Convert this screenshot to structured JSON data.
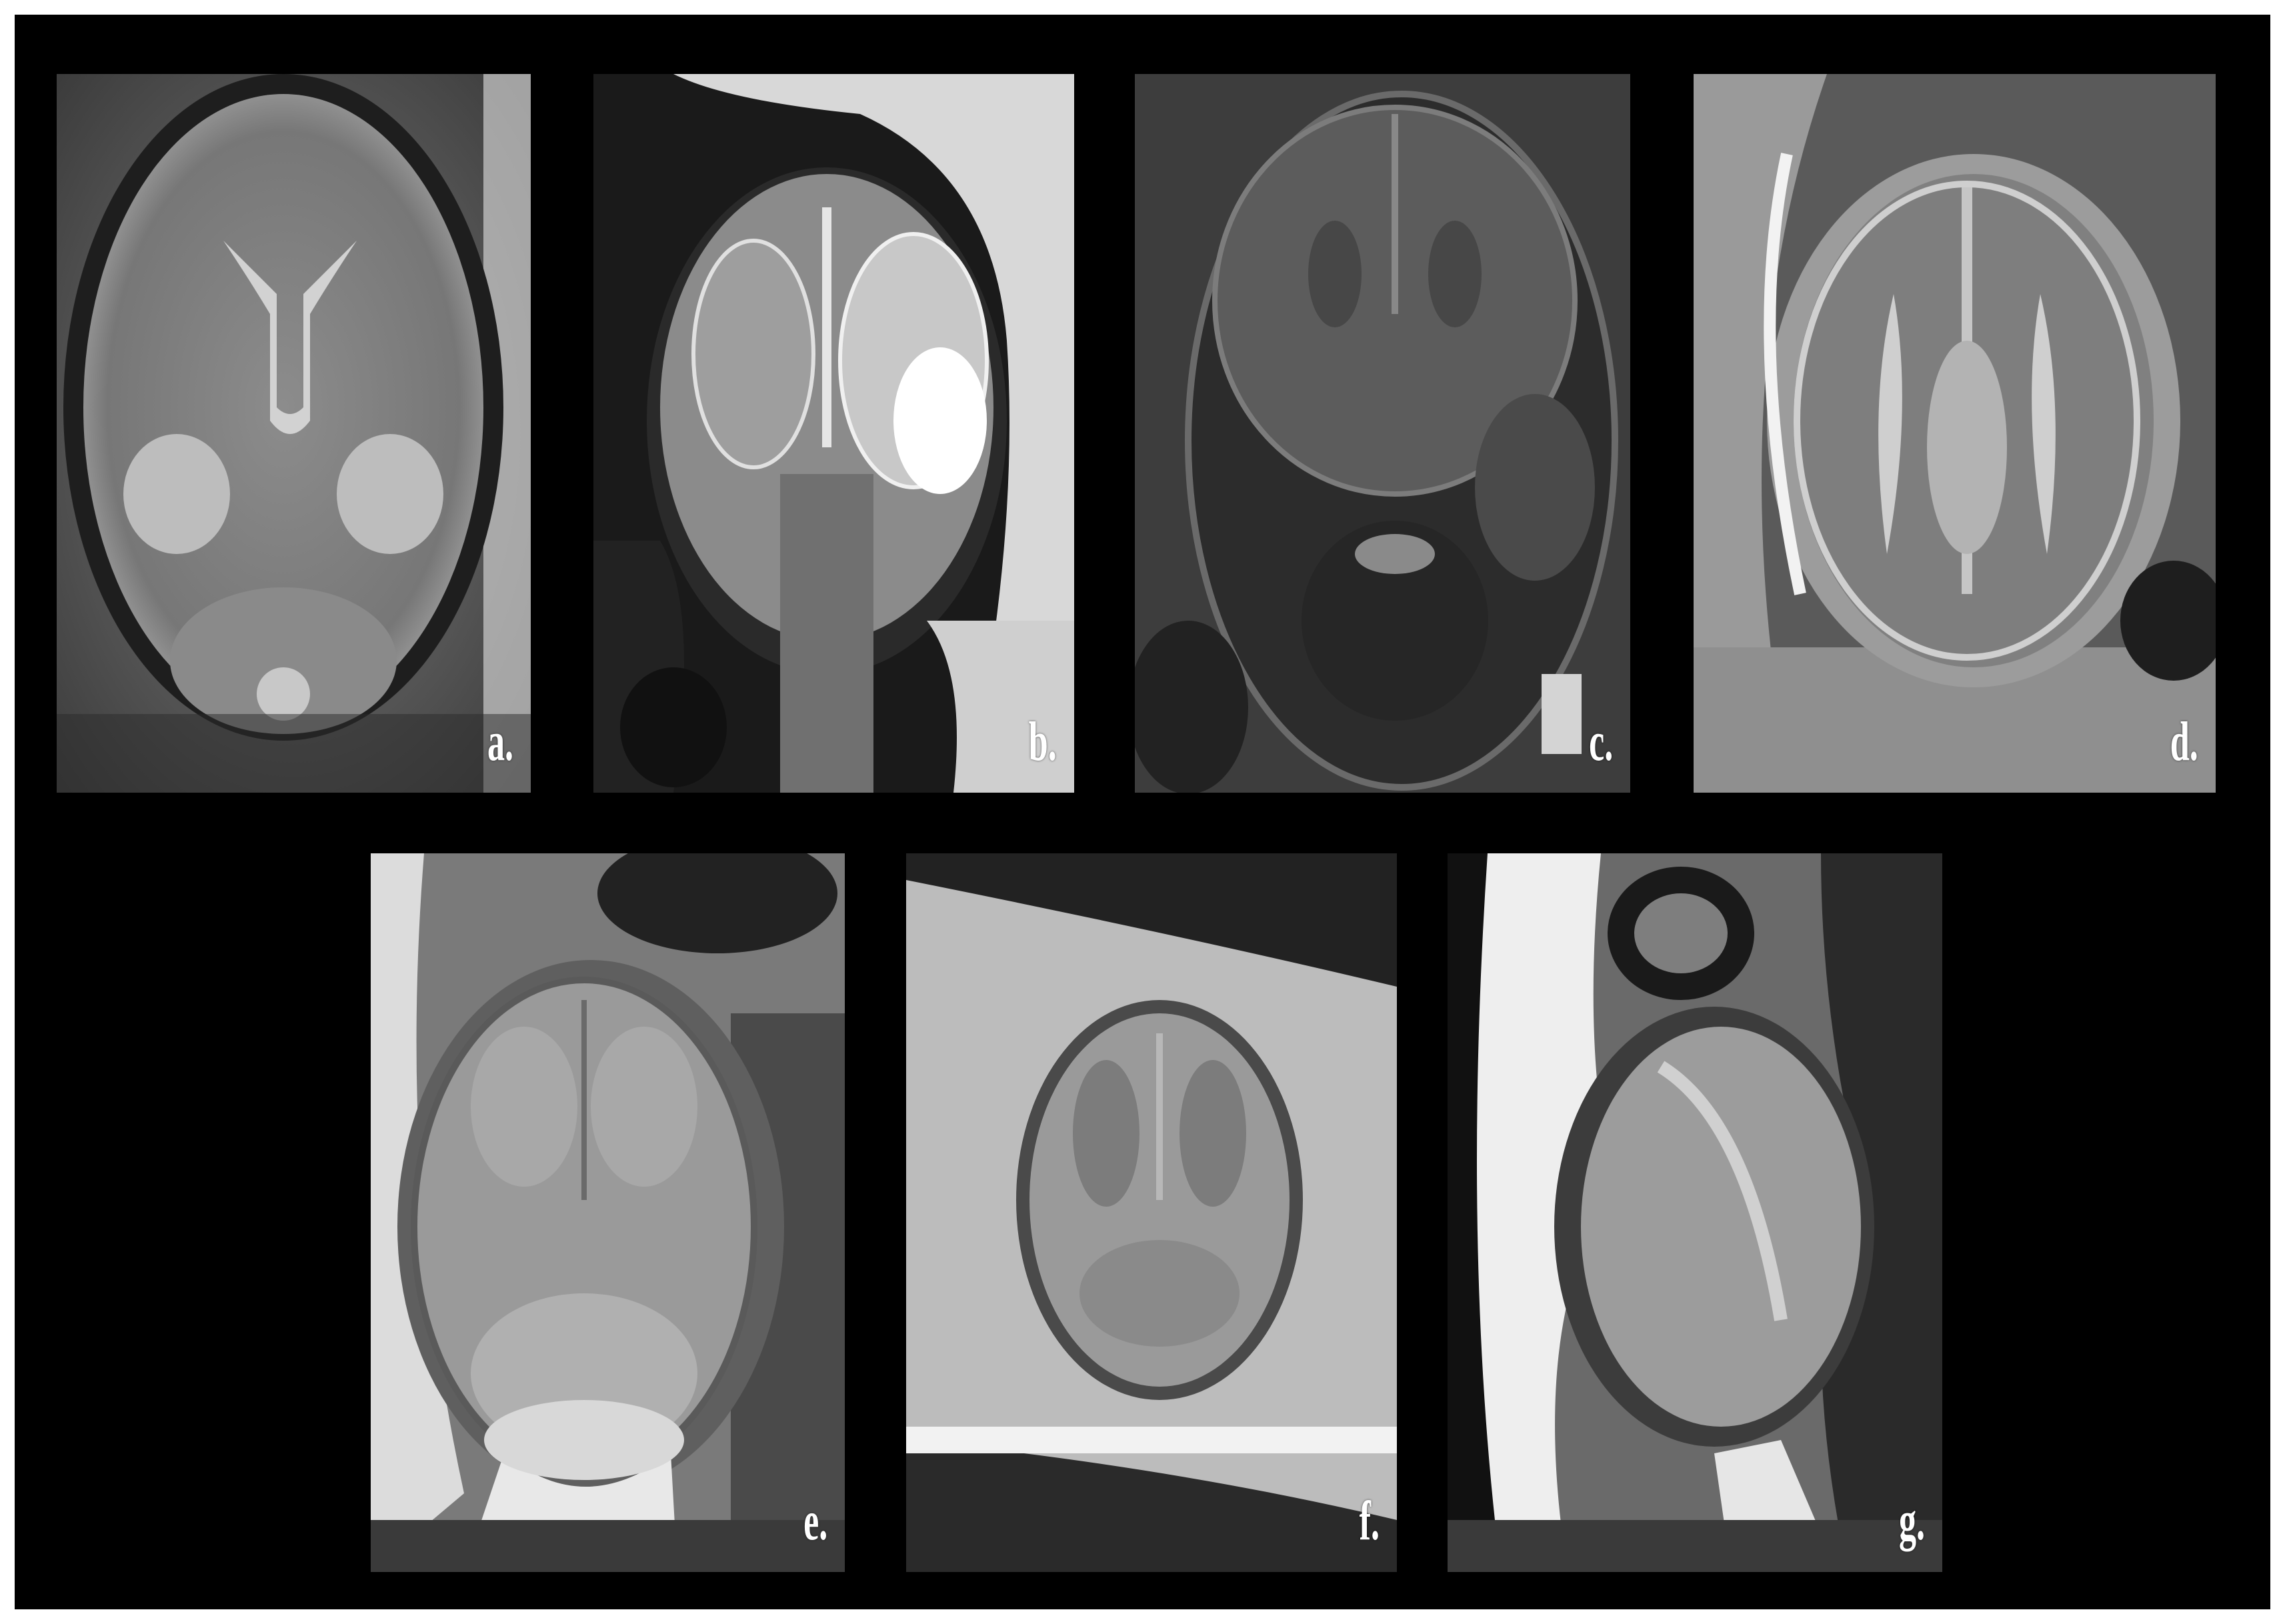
{
  "panels": [
    {
      "id": "a",
      "label": "a."
    },
    {
      "id": "b",
      "label": "b."
    },
    {
      "id": "c",
      "label": "c."
    },
    {
      "id": "d",
      "label": "d."
    },
    {
      "id": "e",
      "label": "e."
    },
    {
      "id": "f",
      "label": "f."
    },
    {
      "id": "g",
      "label": "g."
    }
  ],
  "colors": {
    "frame": "#000000",
    "border": "#ffffff",
    "label": "#ffffff"
  },
  "images": {
    "a": "fetal-brain-mri-axial-diffusion",
    "b": "fetal-brain-mri-coronal",
    "c": "fetal-brain-mri-coronal-dark",
    "d": "fetal-brain-mri-axial",
    "e": "fetal-brain-mri-axial-t2",
    "f": "fetal-brain-mri-axial-blurred",
    "g": "fetal-mri-sagittal"
  }
}
